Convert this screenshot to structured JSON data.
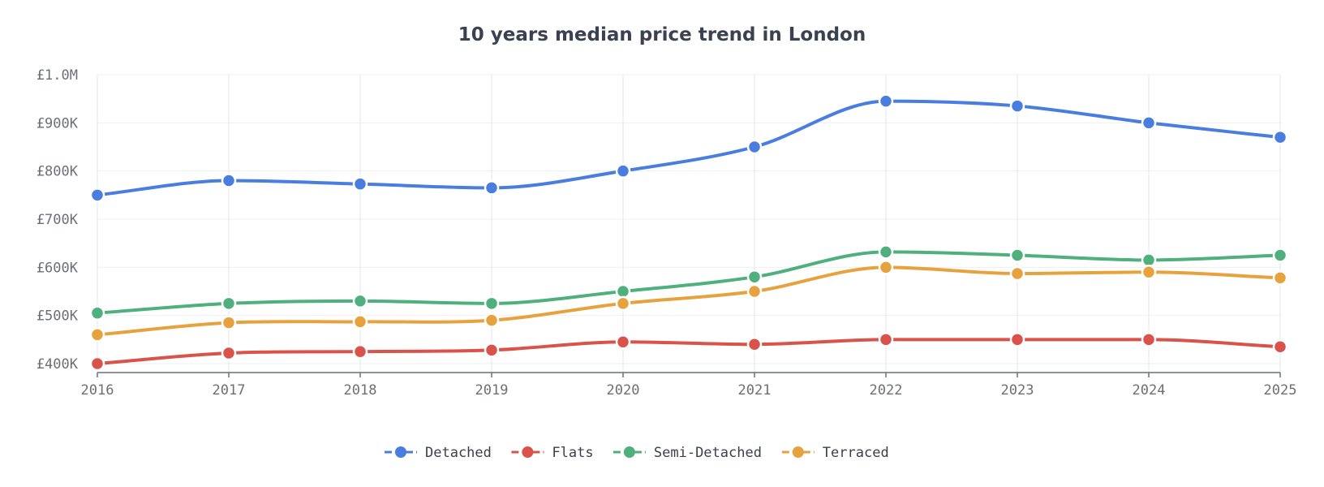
{
  "chart_data": {
    "type": "line",
    "title": "10 years median price trend in London",
    "xlabel": "",
    "ylabel": "",
    "categories": [
      "2016",
      "2017",
      "2018",
      "2019",
      "2020",
      "2021",
      "2022",
      "2023",
      "2024",
      "2025"
    ],
    "y_ticks": [
      {
        "value": 400000,
        "label": "£400K"
      },
      {
        "value": 500000,
        "label": "£500K"
      },
      {
        "value": 600000,
        "label": "£600K"
      },
      {
        "value": 700000,
        "label": "£700K"
      },
      {
        "value": 800000,
        "label": "£800K"
      },
      {
        "value": 900000,
        "label": "£900K"
      },
      {
        "value": 1000000,
        "label": "£1.0M"
      }
    ],
    "ylim": [
      380000,
      1000000
    ],
    "grid": true,
    "legend": "bottom",
    "series": [
      {
        "name": "Detached",
        "color": "#4a7de0",
        "values": [
          750000,
          780000,
          773000,
          765000,
          800000,
          850000,
          945000,
          935000,
          900000,
          870000
        ]
      },
      {
        "name": "Flats",
        "color": "#d9534a",
        "values": [
          400000,
          422000,
          425000,
          428000,
          445000,
          440000,
          450000,
          450000,
          450000,
          435000
        ]
      },
      {
        "name": "Semi-Detached",
        "color": "#4fb07e",
        "values": [
          505000,
          525000,
          530000,
          525000,
          550000,
          580000,
          632000,
          625000,
          615000,
          625000
        ]
      },
      {
        "name": "Terraced",
        "color": "#e6a23c",
        "values": [
          460000,
          485000,
          487000,
          490000,
          525000,
          550000,
          600000,
          587000,
          590000,
          578000
        ]
      }
    ]
  }
}
